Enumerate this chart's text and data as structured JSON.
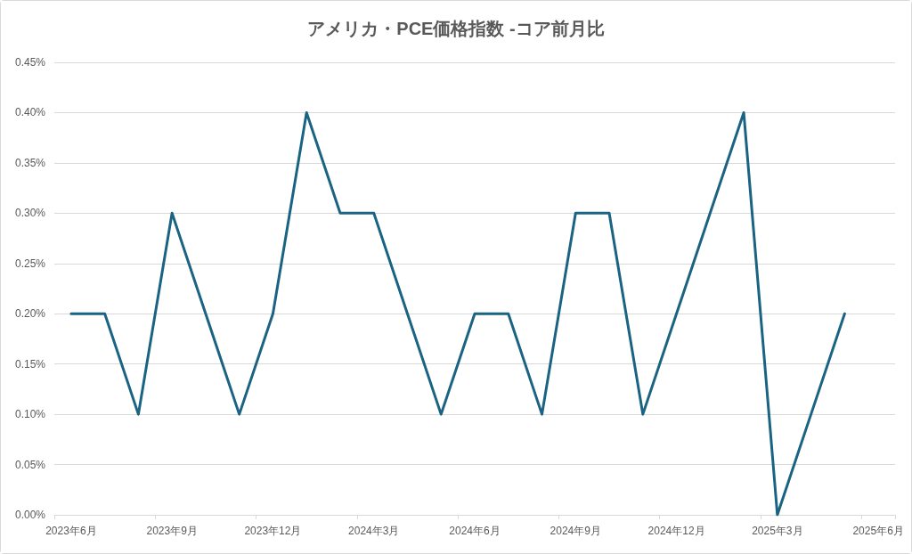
{
  "chart_data": {
    "type": "line",
    "title": "アメリカ・PCE価格指数 -コア前月比",
    "categories": [
      "2023年6月",
      null,
      null,
      "2023年9月",
      null,
      null,
      "2023年12月",
      null,
      null,
      "2024年3月",
      null,
      null,
      "2024年6月",
      null,
      null,
      "2024年9月",
      null,
      null,
      "2024年12月",
      null,
      null,
      "2025年3月",
      null,
      null,
      "2025年6月"
    ],
    "values": [
      0.2,
      0.2,
      0.1,
      0.3,
      0.2,
      0.1,
      0.2,
      0.4,
      0.3,
      0.3,
      0.2,
      0.1,
      0.2,
      0.2,
      0.1,
      0.3,
      0.3,
      0.1,
      0.2,
      0.3,
      0.4,
      0.0,
      0.1,
      0.2,
      null
    ],
    "color": "#1b6382",
    "ylim": [
      0,
      0.45
    ],
    "yticks": [
      {
        "value": 0,
        "label": "0.00%"
      },
      {
        "value": 0.05,
        "label": "0.05%"
      },
      {
        "value": 0.1,
        "label": "0.10%"
      },
      {
        "value": 0.15,
        "label": "0.15%"
      },
      {
        "value": 0.2,
        "label": "0.20%"
      },
      {
        "value": 0.25,
        "label": "0.25%"
      },
      {
        "value": 0.3,
        "label": "0.30%"
      },
      {
        "value": 0.35,
        "label": "0.35%"
      },
      {
        "value": 0.4,
        "label": "0.40%"
      },
      {
        "value": 0.45,
        "label": "0.45%"
      }
    ],
    "grid": "y",
    "marker": "none",
    "line_style": "solid"
  }
}
